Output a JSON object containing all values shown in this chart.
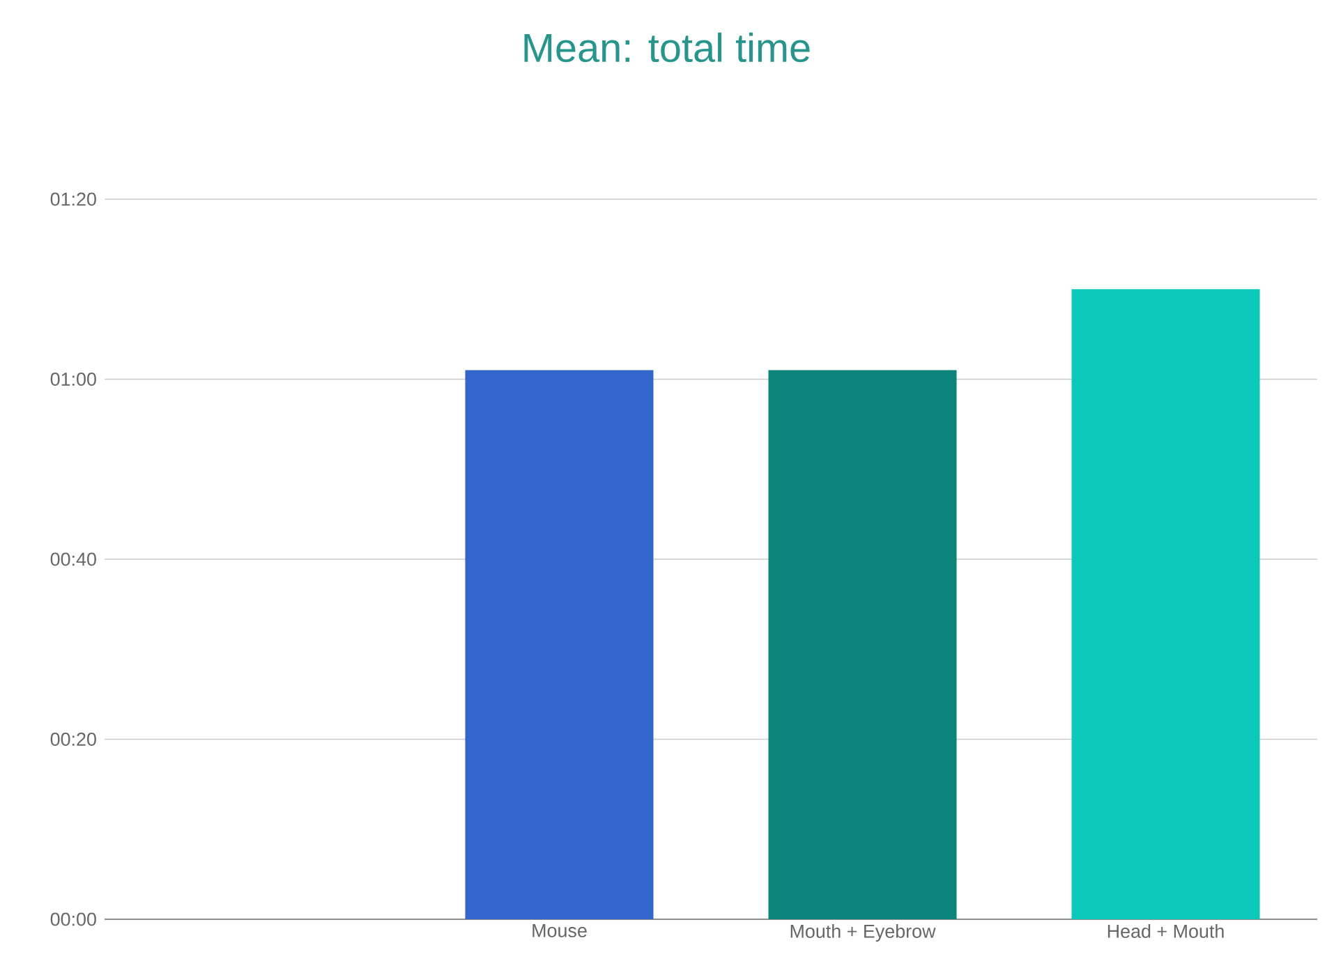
{
  "chart_data": {
    "type": "bar",
    "title": "Mean: total time",
    "categories": [
      null,
      "Mouse",
      "Mouth + Eyebrow",
      "Head + Mouth"
    ],
    "values": [
      null,
      61,
      61,
      70
    ],
    "colors": [
      null,
      "#3366cc",
      "#0b847a",
      "#0ac9bb"
    ],
    "ylim": [
      0,
      80
    ],
    "yticks": [
      {
        "value": 0,
        "label": "00:00"
      },
      {
        "value": 20,
        "label": "00:20"
      },
      {
        "value": 40,
        "label": "00:40"
      },
      {
        "value": 60,
        "label": "01:00"
      },
      {
        "value": 80,
        "label": "01:20"
      }
    ],
    "grid": "y"
  }
}
